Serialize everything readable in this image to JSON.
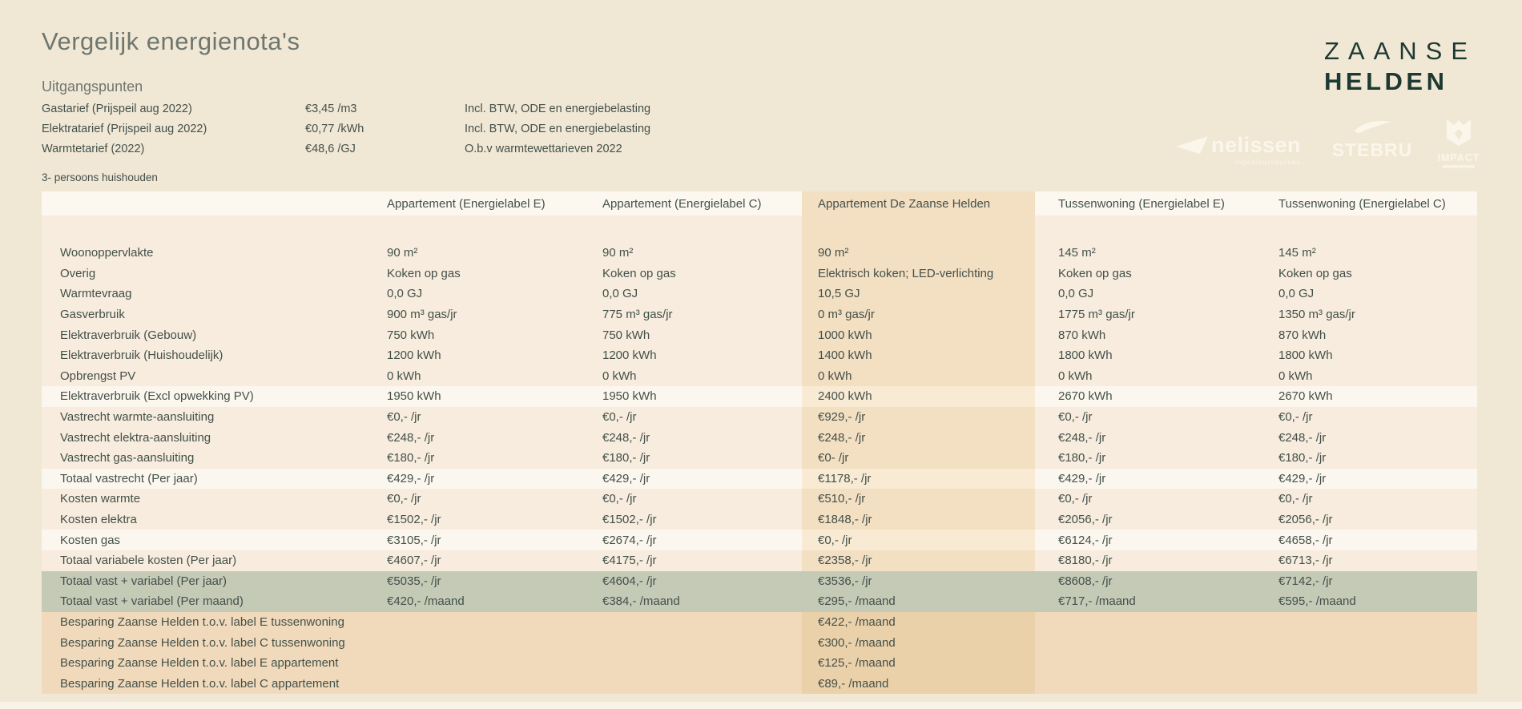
{
  "page": {
    "title": "Vergelijk energienota's",
    "household_label": "3- persoons huishouden"
  },
  "assumptions": {
    "heading": "Uitgangspunten",
    "rows": [
      {
        "label": "Gastarief (Prijspeil aug 2022)",
        "value": "€3,45 /m3",
        "note": "Incl. BTW, ODE en energiebelasting"
      },
      {
        "label": "Elektratarief (Prijspeil aug 2022)",
        "value": "€0,77 /kWh",
        "note": "Incl. BTW, ODE en energiebelasting"
      },
      {
        "label": "Warmtetarief (2022)",
        "value": "€48,6 /GJ",
        "note": "O.b.v warmtewettarieven 2022"
      }
    ]
  },
  "brand": {
    "line1": "ZAANSE",
    "line2": "HELDEN"
  },
  "partners": {
    "nelissen_label": "nelissen",
    "nelissen_sub": "ingenieursbureau",
    "stebru_label": "STEBRU",
    "impact_label": "IMPACT"
  },
  "table": {
    "columns": [
      "",
      "Appartement (Energielabel E)",
      "Appartement (Energielabel C)",
      "Appartement De Zaanse Helden",
      "Tussenwoning (Energielabel E)",
      "Tussenwoning (Energielabel C)"
    ],
    "rows": [
      {
        "label": "Woonoppervlakte",
        "style": "normal",
        "values": [
          "90 m²",
          "90 m²",
          "90 m²",
          "145 m²",
          "145 m²"
        ]
      },
      {
        "label": "Overig",
        "style": "normal",
        "values": [
          "Koken op gas",
          "Koken op gas",
          "Elektrisch koken; LED-verlichting",
          "Koken op gas",
          "Koken op gas"
        ]
      },
      {
        "label": "Warmtevraag",
        "style": "normal",
        "values": [
          "0,0 GJ",
          "0,0 GJ",
          "10,5 GJ",
          "0,0 GJ",
          "0,0 GJ"
        ]
      },
      {
        "label": "Gasverbruik",
        "style": "normal",
        "values": [
          "900 m³  gas/jr",
          "775 m³  gas/jr",
          "0 m³  gas/jr",
          "1775 m³  gas/jr",
          "1350 m³  gas/jr"
        ]
      },
      {
        "label": "Elektraverbruik (Gebouw)",
        "style": "normal",
        "values": [
          "750 kWh",
          "750 kWh",
          "1000 kWh",
          "870 kWh",
          "870 kWh"
        ]
      },
      {
        "label": "Elektraverbruik (Huishoudelijk)",
        "style": "normal",
        "values": [
          "1200 kWh",
          "1200 kWh",
          "1400 kWh",
          "1800 kWh",
          "1800 kWh"
        ]
      },
      {
        "label": "Opbrengst PV",
        "style": "normal",
        "values": [
          "0 kWh",
          "0 kWh",
          "0 kWh",
          "0 kWh",
          "0 kWh"
        ]
      },
      {
        "label": "Elektraverbruik (Excl opwekking PV)",
        "style": "light",
        "values": [
          "1950 kWh",
          "1950 kWh",
          "2400 kWh",
          "2670 kWh",
          "2670 kWh"
        ]
      },
      {
        "label": "Vastrecht warmte-aansluiting",
        "style": "normal",
        "values": [
          "€0,- /jr",
          "€0,- /jr",
          "€929,- /jr",
          "€0,- /jr",
          "€0,- /jr"
        ]
      },
      {
        "label": "Vastrecht elektra-aansluiting",
        "style": "normal",
        "values": [
          "€248,- /jr",
          "€248,- /jr",
          "€248,- /jr",
          "€248,- /jr",
          "€248,- /jr"
        ]
      },
      {
        "label": "Vastrecht gas-aansluiting",
        "style": "normal",
        "values": [
          "€180,- /jr",
          "€180,- /jr",
          "€0- /jr",
          "€180,- /jr",
          "€180,- /jr"
        ]
      },
      {
        "label": "Totaal vastrecht (Per jaar)",
        "style": "light",
        "values": [
          "€429,- /jr",
          "€429,- /jr",
          "€1178,- /jr",
          "€429,- /jr",
          "€429,- /jr"
        ]
      },
      {
        "label": "Kosten warmte",
        "style": "normal",
        "values": [
          "€0,- /jr",
          "€0,- /jr",
          "€510,- /jr",
          "€0,- /jr",
          "€0,- /jr"
        ]
      },
      {
        "label": "Kosten elektra",
        "style": "normal",
        "values": [
          "€1502,- /jr",
          "€1502,- /jr",
          "€1848,- /jr",
          "€2056,- /jr",
          "€2056,- /jr"
        ]
      },
      {
        "label": "Kosten gas",
        "style": "light",
        "values": [
          "€3105,- /jr",
          "€2674,- /jr",
          "€0,- /jr",
          "€6124,- /jr",
          "€4658,- /jr"
        ]
      },
      {
        "label": "Totaal variabele kosten (Per jaar)",
        "style": "normal",
        "values": [
          "€4607,- /jr",
          "€4175,- /jr",
          "€2358,- /jr",
          "€8180,- /jr",
          "€6713,- /jr"
        ]
      },
      {
        "label": "Totaal vast + variabel (Per jaar)",
        "style": "green",
        "values": [
          "€5035,- /jr",
          "€4604,- /jr",
          "€3536,- /jr",
          "€8608,- /jr",
          "€7142,- /jr"
        ]
      },
      {
        "label": "Totaal vast + variabel (Per maand)",
        "style": "green",
        "values": [
          "€420,- /maand",
          "€384,- /maand",
          "€295,- /maand",
          "€717,- /maand",
          "€595,- /maand"
        ]
      },
      {
        "label": "Besparing Zaanse Helden t.o.v. label E tussenwoning",
        "style": "tan",
        "values": [
          "",
          "",
          "€422,- /maand",
          "",
          ""
        ]
      },
      {
        "label": "Besparing Zaanse Helden t.o.v. label C tussenwoning",
        "style": "tan",
        "values": [
          "",
          "",
          "€300,- /maand",
          "",
          ""
        ]
      },
      {
        "label": "Besparing Zaanse Helden t.o.v. label E appartement",
        "style": "tan",
        "values": [
          "",
          "",
          "€125,- /maand",
          "",
          ""
        ]
      },
      {
        "label": "Besparing Zaanse Helden t.o.v. label C appartement",
        "style": "tan",
        "values": [
          "",
          "",
          "€89,- /maand",
          "",
          ""
        ]
      }
    ]
  },
  "colors": {
    "page_bg": "#f1e7d5",
    "table_bg": "#f7ecdd",
    "row_light": "#fcf7ee",
    "header_bg": "#fcf8f0",
    "zh_column": "#f3dfc2",
    "zh_column_light": "#f8ead3",
    "total_green": "#c4cab6",
    "savings_tan": "#f0dabb",
    "savings_tan_zh": "#ebd1aa",
    "text_dark": "#43504a",
    "text_muted": "#6e776f",
    "brand_green": "#1d3a32"
  }
}
